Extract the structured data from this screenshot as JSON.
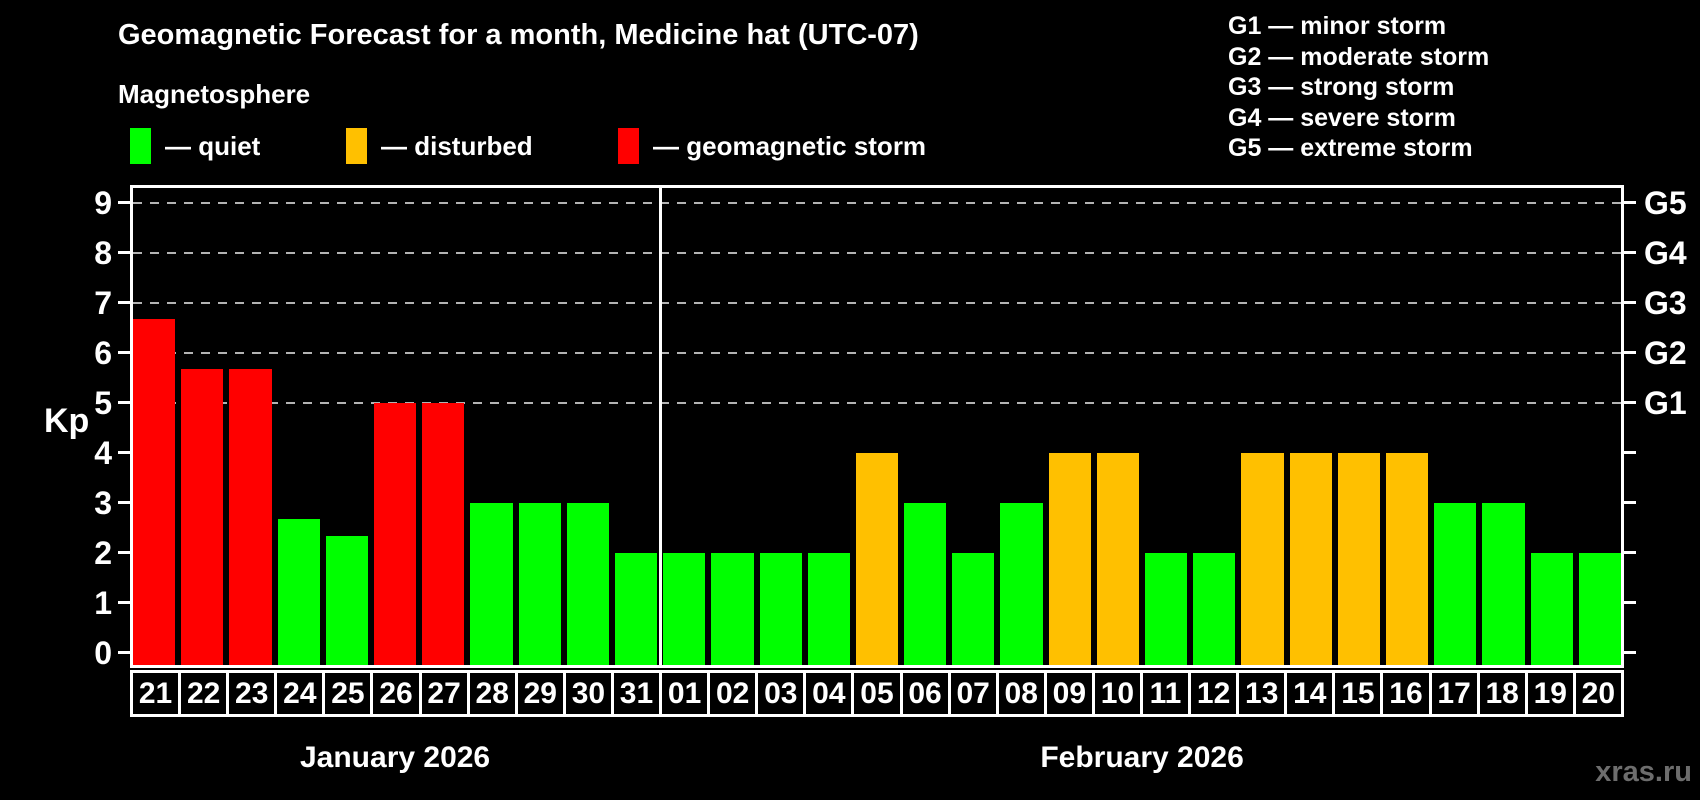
{
  "watermark": "xras.ru",
  "chart_data": {
    "type": "bar",
    "title": "Geomagnetic Forecast for a month, Medicine hat (UTC-07)",
    "subtitle": "Magnetosphere",
    "ylabel": "Kp",
    "ylim": [
      0,
      9
    ],
    "yticks": [
      0,
      1,
      2,
      3,
      4,
      5,
      6,
      7,
      8,
      9
    ],
    "gridlines_at_kp": [
      5,
      6,
      7,
      8,
      9
    ],
    "grid": "dashed horizontal at G-storm levels only",
    "legend_position": "top",
    "legend": [
      {
        "state": "quiet",
        "label": "— quiet",
        "color": "#00ff00"
      },
      {
        "state": "disturbed",
        "label": "— disturbed",
        "color": "#ffc000"
      },
      {
        "state": "storm",
        "label": "— geomagnetic storm",
        "color": "#ff0000"
      }
    ],
    "right_labels": [
      {
        "kp": 5,
        "label": "G1"
      },
      {
        "kp": 6,
        "label": "G2"
      },
      {
        "kp": 7,
        "label": "G3"
      },
      {
        "kp": 8,
        "label": "G4"
      },
      {
        "kp": 9,
        "label": "G5"
      }
    ],
    "g_scale_legend": [
      "G1 — minor storm",
      "G2 — moderate storm",
      "G3 — strong storm",
      "G4 — severe storm",
      "G5 — extreme storm"
    ],
    "months": [
      {
        "label": "January 2026",
        "bars": [
          {
            "day": "21",
            "kp": 6.67,
            "state": "storm"
          },
          {
            "day": "22",
            "kp": 5.67,
            "state": "storm"
          },
          {
            "day": "23",
            "kp": 5.67,
            "state": "storm"
          },
          {
            "day": "24",
            "kp": 2.67,
            "state": "quiet"
          },
          {
            "day": "25",
            "kp": 2.33,
            "state": "quiet"
          },
          {
            "day": "26",
            "kp": 5,
            "state": "storm"
          },
          {
            "day": "27",
            "kp": 5,
            "state": "storm"
          },
          {
            "day": "28",
            "kp": 3,
            "state": "quiet"
          },
          {
            "day": "29",
            "kp": 3,
            "state": "quiet"
          },
          {
            "day": "30",
            "kp": 3,
            "state": "quiet"
          },
          {
            "day": "31",
            "kp": 2,
            "state": "quiet"
          }
        ]
      },
      {
        "label": "February 2026",
        "bars": [
          {
            "day": "01",
            "kp": 2,
            "state": "quiet"
          },
          {
            "day": "02",
            "kp": 2,
            "state": "quiet"
          },
          {
            "day": "03",
            "kp": 2,
            "state": "quiet"
          },
          {
            "day": "04",
            "kp": 2,
            "state": "quiet"
          },
          {
            "day": "05",
            "kp": 4,
            "state": "disturbed"
          },
          {
            "day": "06",
            "kp": 3,
            "state": "quiet"
          },
          {
            "day": "07",
            "kp": 2,
            "state": "quiet"
          },
          {
            "day": "08",
            "kp": 3,
            "state": "quiet"
          },
          {
            "day": "09",
            "kp": 4,
            "state": "disturbed"
          },
          {
            "day": "10",
            "kp": 4,
            "state": "disturbed"
          },
          {
            "day": "11",
            "kp": 2,
            "state": "quiet"
          },
          {
            "day": "12",
            "kp": 2,
            "state": "quiet"
          },
          {
            "day": "13",
            "kp": 4,
            "state": "disturbed"
          },
          {
            "day": "14",
            "kp": 4,
            "state": "disturbed"
          },
          {
            "day": "15",
            "kp": 4,
            "state": "disturbed"
          },
          {
            "day": "16",
            "kp": 4,
            "state": "disturbed"
          },
          {
            "day": "17",
            "kp": 3,
            "state": "quiet"
          },
          {
            "day": "18",
            "kp": 3,
            "state": "quiet"
          },
          {
            "day": "19",
            "kp": 2,
            "state": "quiet"
          },
          {
            "day": "20",
            "kp": 2,
            "state": "quiet"
          }
        ]
      }
    ]
  }
}
